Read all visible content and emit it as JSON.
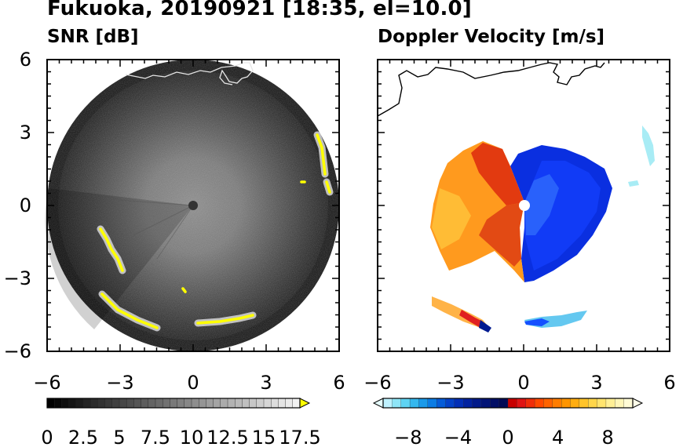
{
  "figure": {
    "title": "Fukuoka, 20190921 [18:35, el=10.0]"
  },
  "panels": [
    {
      "title": "SNR [dB]"
    },
    {
      "title": "Doppler Velocity [m/s]"
    }
  ],
  "chart_data": [
    {
      "type": "heatmap",
      "title": "SNR [dB]",
      "xlim": [
        -6,
        6
      ],
      "ylim": [
        -6,
        6
      ],
      "x_ticks": [
        "−6",
        "−3",
        "0",
        "3",
        "6"
      ],
      "y_ticks": [
        "6",
        "3",
        "0",
        "−3",
        "−6"
      ],
      "colorbar": {
        "colormap": "grayscale-to-yellow",
        "range": [
          0,
          17.5
        ],
        "extend": "max",
        "tick_labels": [
          "0",
          "2.5",
          "5",
          "7.5",
          "10",
          "12.5",
          "15",
          "17.5"
        ],
        "levels": 35,
        "colors": {
          "low": "#000000",
          "high": "#f2f2f2",
          "extend": "#ffff00"
        }
      },
      "range_circle_radius": 6,
      "features": [
        "radar scan disc",
        "coastline outline",
        "bright yellow clutter echoes near edge"
      ]
    },
    {
      "type": "heatmap",
      "title": "Doppler Velocity [m/s]",
      "xlim": [
        -6,
        6
      ],
      "ylim": [
        -6,
        6
      ],
      "x_ticks": [
        "−6",
        "−3",
        "0",
        "3",
        "6"
      ],
      "colorbar": {
        "colormap": "blue-red diverging",
        "range": [
          -10,
          10
        ],
        "extend": "both",
        "tick_labels": [
          "−8",
          "−4",
          "0",
          "4",
          "8"
        ],
        "colors": {
          "neg": [
            "#e0ffff",
            "#7fd8f0",
            "#2fa0f0",
            "#0044dd",
            "#0000aa",
            "#000070"
          ],
          "pos": [
            "#d00000",
            "#ff3300",
            "#ff7a00",
            "#ffb300",
            "#ffe070",
            "#fffacd"
          ]
        }
      },
      "features": [
        "approaching (blue) east side",
        "receding (red/orange) west side",
        "radar site marker at origin"
      ]
    }
  ]
}
